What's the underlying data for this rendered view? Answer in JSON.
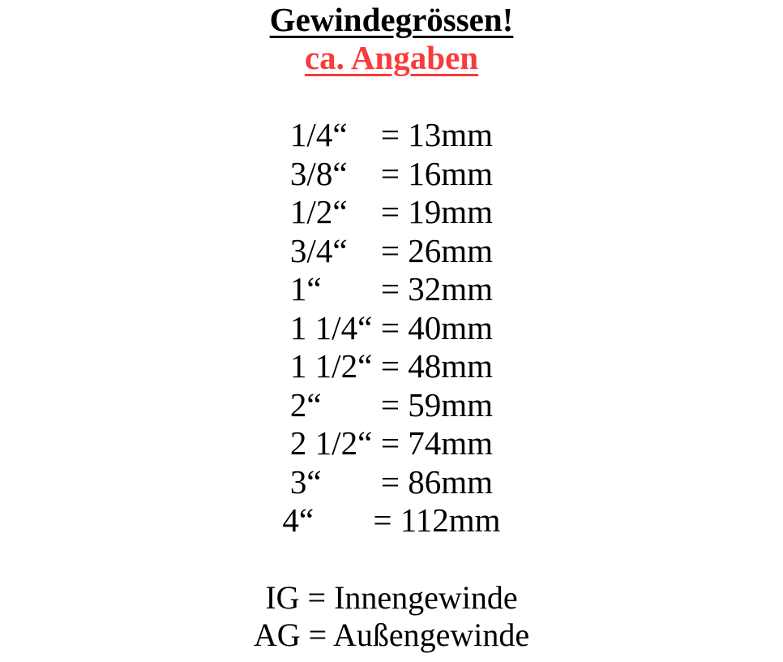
{
  "header": {
    "title": "Gewindegrössen!",
    "subtitle": "ca. Angaben"
  },
  "colors": {
    "title_text": "#000000",
    "subtitle_accent": "#fa3b3b",
    "background": "#ffffff"
  },
  "sizes": [
    {
      "inch": "1/4“",
      "mm": "= 13mm"
    },
    {
      "inch": "3/8“",
      "mm": "= 16mm"
    },
    {
      "inch": "1/2“",
      "mm": "= 19mm"
    },
    {
      "inch": "3/4“",
      "mm": "= 26mm"
    },
    {
      "inch": "1“",
      "mm": "= 32mm"
    },
    {
      "inch": "1 1/4“",
      "mm": "= 40mm"
    },
    {
      "inch": "1 1/2“",
      "mm": "= 48mm"
    },
    {
      "inch": "2“",
      "mm": "= 59mm"
    },
    {
      "inch": "2 1/2“",
      "mm": "= 74mm"
    },
    {
      "inch": "3“",
      "mm": "= 86mm"
    },
    {
      "inch": "4“",
      "mm": "= 112mm"
    }
  ],
  "legend": {
    "ig": "IG = Innengewinde",
    "ag": "AG = Außengewinde"
  }
}
